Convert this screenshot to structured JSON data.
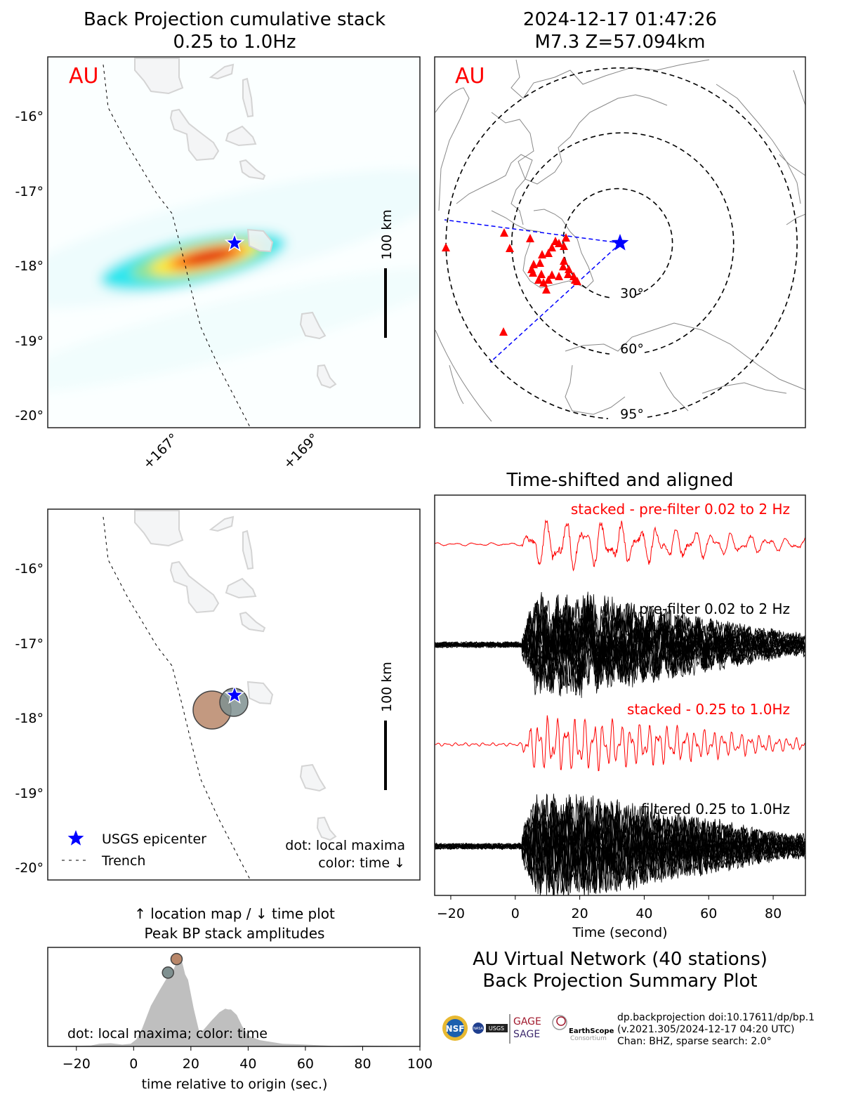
{
  "map_bp": {
    "title_line1": "Back Projection cumulative stack",
    "title_line2": "0.25 to 1.0Hz",
    "network_label": "AU",
    "lat_ticks": [
      "-16°",
      "-17°",
      "-18°",
      "-19°",
      "-20°"
    ],
    "lon_ticks": [
      "+167°",
      "+169°"
    ],
    "scale_label": "100 km"
  },
  "map_global": {
    "title_line1": "2024-12-17 01:47:26",
    "title_line2": "M7.3 Z=57.094km",
    "network_label": "AU",
    "distance_labels": [
      "30°",
      "60°",
      "95°"
    ]
  },
  "map_maxima": {
    "lat_ticks": [
      "-16°",
      "-17°",
      "-18°",
      "-19°",
      "-20°"
    ],
    "scale_label": "100 km",
    "legend": {
      "epicenter": "USGS epicenter",
      "trench": "Trench"
    },
    "note_line1": "dot: local maxima",
    "note_line2": "color: time ↓"
  },
  "colors": {
    "stacked": "#ff0000",
    "epicenter": "#0000ff",
    "station": "#ff0000",
    "early_max": "#7f9090",
    "late_max": "#b9876a"
  },
  "chart_data": [
    {
      "type": "line",
      "title": "Time-shifted and aligned",
      "xlabel": "Time (second)",
      "xlim": [
        -25,
        90
      ],
      "xticks": [
        "−20",
        "0",
        "20",
        "40",
        "60",
        "80"
      ],
      "xtick_values": [
        -20,
        0,
        20,
        40,
        60,
        80
      ],
      "trace_labels": [
        "stacked - pre-filter 0.02 to 2 Hz",
        "pre-filter 0.02 to 2 Hz",
        "stacked - 0.25 to 1.0Hz",
        "filtered 0.25 to 1.0Hz"
      ]
    },
    {
      "type": "area",
      "title_line1": "↑ location map / ↓ time plot",
      "title_line2": "Peak BP stack amplitudes",
      "xlabel": "time relative to origin (sec.)",
      "xlim": [
        -30,
        100
      ],
      "ylim": [
        0,
        1.1
      ],
      "xticks": [
        "−20",
        "0",
        "20",
        "40",
        "60",
        "80",
        "100"
      ],
      "xtick_values": [
        -20,
        0,
        20,
        40,
        60,
        80,
        100
      ],
      "annotation": "dot: local maxima; color: time",
      "x": [
        -30,
        -15,
        -12,
        -8,
        -4,
        -1,
        1,
        3,
        6,
        9,
        12,
        14,
        16,
        17,
        18,
        19,
        21,
        23,
        24,
        27,
        30,
        32,
        33,
        34,
        36,
        38,
        40,
        44,
        48,
        52,
        60,
        70,
        80,
        90,
        100
      ],
      "y": [
        0,
        0.01,
        0.03,
        0.035,
        0.02,
        0.03,
        0.08,
        0.2,
        0.45,
        0.62,
        0.78,
        0.86,
        1.0,
        0.93,
        0.8,
        0.74,
        0.42,
        0.15,
        0.17,
        0.28,
        0.38,
        0.42,
        0.41,
        0.41,
        0.35,
        0.22,
        0.12,
        0.07,
        0.05,
        0.03,
        0.02,
        0.005,
        0.01,
        0.005,
        0
      ],
      "maxima": [
        {
          "t": 12,
          "amp": 0.82,
          "color": "#7f9090"
        },
        {
          "t": 15,
          "amp": 0.97,
          "color": "#b9876a"
        }
      ]
    }
  ],
  "summary": {
    "title_line1": "AU Virtual Network (40 stations)",
    "title_line2": "Back Projection Summary Plot",
    "info_line1": "dp.backprojection doi:10.17611/dp/bp.1",
    "info_line2": "(v.2021.305/2024-12-17 04:20 UTC)",
    "info_line3": "Chan: BHZ, sparse search: 2.0°",
    "logos": [
      "NSF",
      "NASA",
      "USGS",
      "GAGE",
      "SAGE",
      "EarthScope Consortium"
    ]
  }
}
